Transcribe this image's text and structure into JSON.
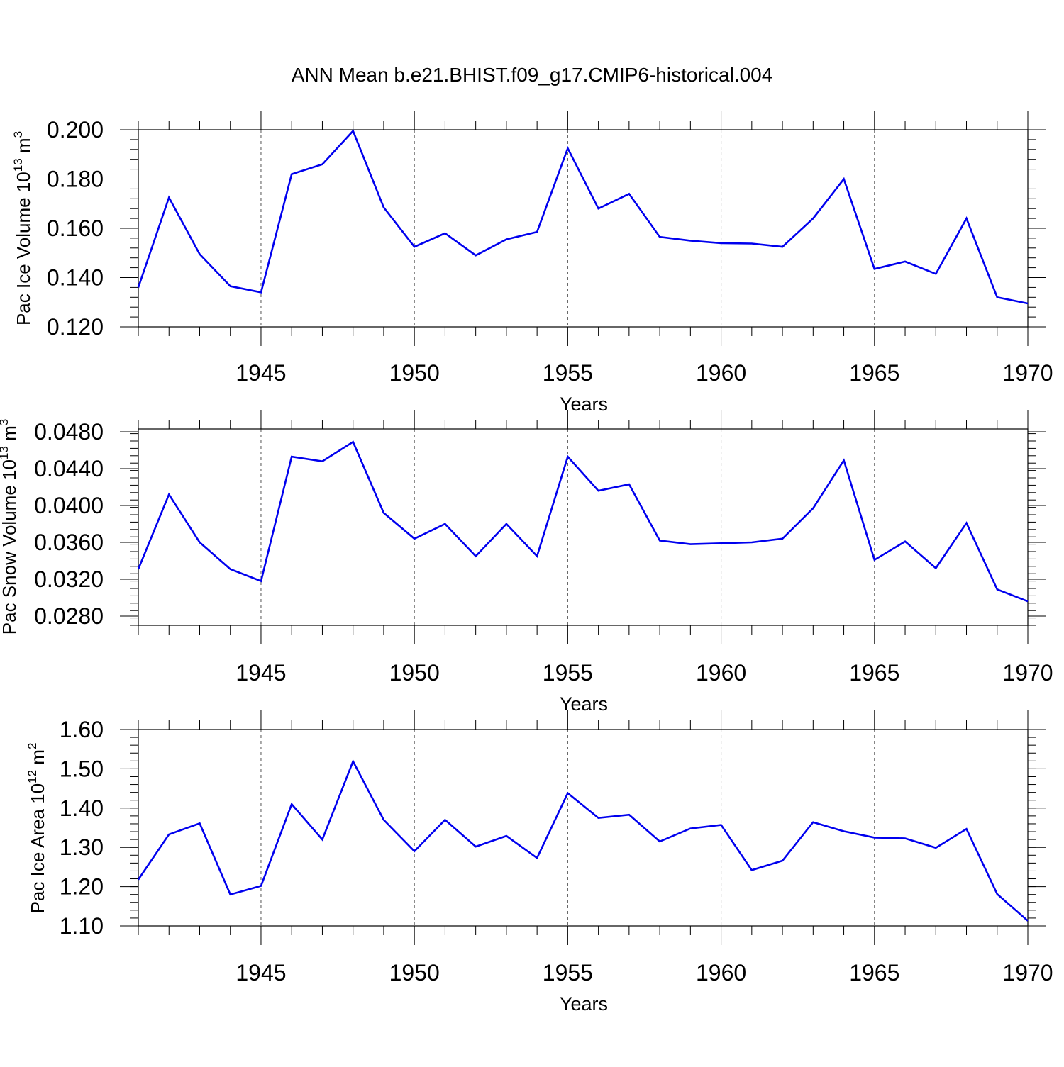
{
  "title": "ANN Mean b.e21.BHIST.f09_g17.CMIP6-historical.004",
  "line_color": "#0000ee",
  "chart_data": [
    {
      "type": "line",
      "ylabel_main": "Pac Ice Volume 10",
      "ylabel_sup": "13",
      "ylabel_unit": "m",
      "ylabel_unit_sup": "3",
      "xlabel": "Years",
      "xlim": [
        1941,
        1970
      ],
      "ylim": [
        0.12,
        0.2
      ],
      "x_ticks": [
        1945,
        1950,
        1955,
        1960,
        1965,
        1970
      ],
      "y_ticks": [
        "0.120",
        "0.140",
        "0.160",
        "0.180",
        "0.200"
      ],
      "y_tick_values": [
        0.12,
        0.14,
        0.16,
        0.18,
        0.2
      ],
      "y_minor_step": 0.004,
      "series": [
        {
          "name": "Pac Ice Volume",
          "x": [
            1941,
            1942,
            1943,
            1944,
            1945,
            1946,
            1947,
            1948,
            1949,
            1950,
            1951,
            1952,
            1953,
            1954,
            1955,
            1956,
            1957,
            1958,
            1959,
            1960,
            1961,
            1962,
            1963,
            1964,
            1965,
            1966,
            1967,
            1968,
            1969,
            1970
          ],
          "values": [
            0.136,
            0.1725,
            0.1495,
            0.1365,
            0.134,
            0.182,
            0.186,
            0.1995,
            0.1685,
            0.1525,
            0.158,
            0.149,
            0.1555,
            0.1585,
            0.1925,
            0.168,
            0.174,
            0.1565,
            0.155,
            0.154,
            0.1538,
            0.1525,
            0.164,
            0.18,
            0.1435,
            0.1465,
            0.1415,
            0.164,
            0.132,
            0.1295
          ]
        }
      ]
    },
    {
      "type": "line",
      "ylabel_main": "Pac Snow Volume 10",
      "ylabel_sup": "13",
      "ylabel_unit": "m",
      "ylabel_unit_sup": "3",
      "xlabel": "Years",
      "xlim": [
        1941,
        1970
      ],
      "ylim": [
        0.027,
        0.049
      ],
      "x_ticks": [
        1945,
        1950,
        1955,
        1960,
        1965,
        1970
      ],
      "y_ticks": [
        "0.0280",
        "0.0320",
        "0.0360",
        "0.0400",
        "0.0440",
        "0.0480"
      ],
      "y_tick_values": [
        0.028,
        0.032,
        0.036,
        0.04,
        0.044,
        0.048
      ],
      "y_minor_step": 0.0008,
      "series": [
        {
          "name": "Pac Snow Volume",
          "x": [
            1941,
            1942,
            1943,
            1944,
            1945,
            1946,
            1947,
            1948,
            1949,
            1950,
            1951,
            1952,
            1953,
            1954,
            1955,
            1956,
            1957,
            1958,
            1959,
            1960,
            1961,
            1962,
            1963,
            1964,
            1965,
            1966,
            1967,
            1968,
            1969,
            1970
          ],
          "values": [
            0.0331,
            0.0412,
            0.036,
            0.0331,
            0.0318,
            0.0453,
            0.0448,
            0.0469,
            0.0392,
            0.0364,
            0.038,
            0.0345,
            0.038,
            0.0345,
            0.0453,
            0.0416,
            0.0423,
            0.0362,
            0.0358,
            0.0359,
            0.036,
            0.0364,
            0.0397,
            0.0449,
            0.0341,
            0.0361,
            0.0332,
            0.0381,
            0.0309,
            0.0296
          ]
        }
      ]
    },
    {
      "type": "line",
      "ylabel_main": "Pac Ice Area 10",
      "ylabel_sup": "12",
      "ylabel_unit": "m",
      "ylabel_unit_sup": "2",
      "xlabel": "Years",
      "xlim": [
        1941,
        1970
      ],
      "ylim": [
        1.1,
        1.6
      ],
      "x_ticks": [
        1945,
        1950,
        1955,
        1960,
        1965,
        1970
      ],
      "y_ticks": [
        "1.10",
        "1.20",
        "1.30",
        "1.40",
        "1.50",
        "1.60"
      ],
      "y_tick_values": [
        1.1,
        1.2,
        1.3,
        1.4,
        1.5,
        1.6
      ],
      "y_minor_step": 0.02,
      "series": [
        {
          "name": "Pac Ice Area",
          "x": [
            1941,
            1942,
            1943,
            1944,
            1945,
            1946,
            1947,
            1948,
            1949,
            1950,
            1951,
            1952,
            1953,
            1954,
            1955,
            1956,
            1957,
            1958,
            1959,
            1960,
            1961,
            1962,
            1963,
            1964,
            1965,
            1966,
            1967,
            1968,
            1969,
            1970
          ],
          "values": [
            1.218,
            1.333,
            1.361,
            1.18,
            1.202,
            1.41,
            1.32,
            1.519,
            1.37,
            1.29,
            1.37,
            1.302,
            1.329,
            1.273,
            1.438,
            1.375,
            1.383,
            1.315,
            1.348,
            1.357,
            1.242,
            1.266,
            1.364,
            1.341,
            1.325,
            1.323,
            1.299,
            1.347,
            1.181,
            1.113
          ]
        }
      ]
    }
  ]
}
